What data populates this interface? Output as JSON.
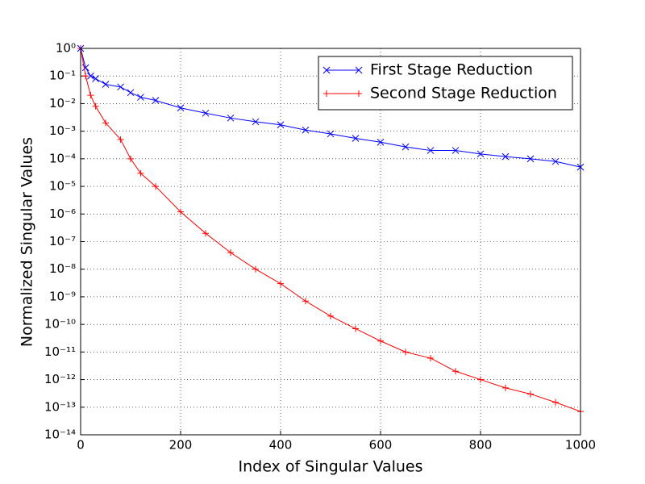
{
  "chart_data": {
    "type": "line",
    "x_label": "Index of Singular Values",
    "y_label": "Normalized Singular Values",
    "log_y": true,
    "grid": true,
    "legend": "upper right",
    "xlim": [
      0,
      1000
    ],
    "xticks": [
      0,
      200,
      400,
      600,
      800,
      1000
    ],
    "ylim": [
      1e-14,
      1
    ],
    "yticks": [
      {
        "value": 1,
        "label": "10⁰"
      },
      {
        "value": 0.1,
        "label": "10⁻¹"
      },
      {
        "value": 0.01,
        "label": "10⁻²"
      },
      {
        "value": 0.001,
        "label": "10⁻³"
      },
      {
        "value": 0.0001,
        "label": "10⁻⁴"
      },
      {
        "value": 1e-05,
        "label": "10⁻⁵"
      },
      {
        "value": 1e-06,
        "label": "10⁻⁶"
      },
      {
        "value": 1e-07,
        "label": "10⁻⁷"
      },
      {
        "value": 1e-08,
        "label": "10⁻⁸"
      },
      {
        "value": 1e-09,
        "label": "10⁻⁹"
      },
      {
        "value": 1e-10,
        "label": "10⁻¹⁰"
      },
      {
        "value": 1e-11,
        "label": "10⁻¹¹"
      },
      {
        "value": 1e-12,
        "label": "10⁻¹²"
      },
      {
        "value": 1e-13,
        "label": "10⁻¹³"
      },
      {
        "value": 1e-14,
        "label": "10⁻¹⁴"
      }
    ],
    "x": [
      0,
      10,
      20,
      30,
      50,
      80,
      100,
      120,
      150,
      200,
      250,
      300,
      350,
      400,
      450,
      500,
      550,
      600,
      650,
      700,
      750,
      800,
      850,
      900,
      950,
      1000
    ],
    "series": [
      {
        "name": "First Stage Reduction",
        "color": "#0000ff",
        "marker": "x",
        "values": [
          1,
          0.2,
          0.1,
          0.08,
          0.05,
          0.04,
          0.025,
          0.017,
          0.013,
          0.007,
          0.0045,
          0.003,
          0.0022,
          0.0017,
          0.0011,
          0.0008,
          0.00055,
          0.0004,
          0.00027,
          0.0002,
          0.0002,
          0.00015,
          0.00012,
          0.0001,
          8e-05,
          5e-05
        ]
      },
      {
        "name": "Second Stage Reduction",
        "color": "#ff0000",
        "marker": "+",
        "values": [
          1,
          0.1,
          0.02,
          0.008,
          0.002,
          0.0005,
          0.0001,
          3e-05,
          1e-05,
          1.2e-06,
          2e-07,
          4e-08,
          1e-08,
          3e-09,
          7e-10,
          2e-10,
          7e-11,
          2.5e-11,
          1e-11,
          6e-12,
          2e-12,
          1e-12,
          5e-13,
          3e-13,
          1.5e-13,
          7e-14
        ]
      }
    ]
  }
}
